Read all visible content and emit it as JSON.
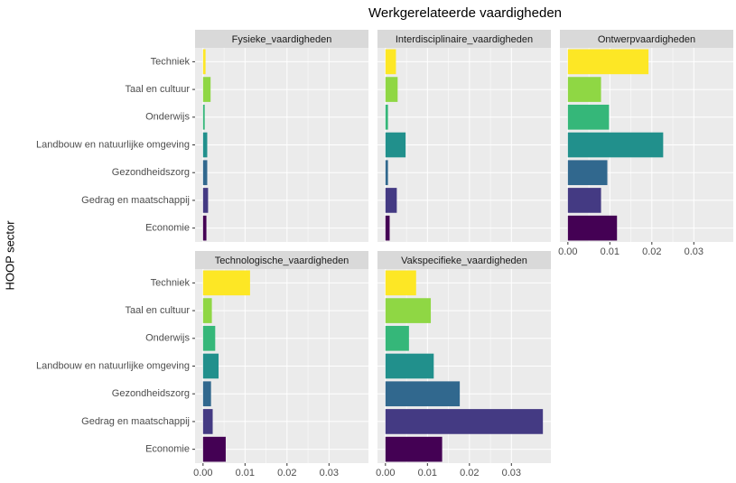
{
  "title": "Werkgerelateerde vaardigheden",
  "y_label": "HOOP sector",
  "chart_data": [
    {
      "type": "bar",
      "title": "Fysieke_vaardigheden",
      "categories": [
        "Techniek",
        "Taal en cultuur",
        "Onderwijs",
        "Landbouw en natuurlijke omgeving",
        "Gezondheidszorg",
        "Gedrag en maatschappij",
        "Economie"
      ],
      "values": [
        0.0006,
        0.0018,
        0.0004,
        0.001,
        0.001,
        0.0012,
        0.0008
      ],
      "colors": [
        "#FDE725",
        "#8FD744",
        "#35B779",
        "#21908C",
        "#31688E",
        "#443A83",
        "#440154"
      ],
      "xlim": [
        -0.0019,
        0.0394
      ],
      "xticks": [
        {
          "value": 0,
          "label": "0.00"
        },
        0.01,
        0.02,
        0.03
      ]
    },
    {
      "type": "bar",
      "title": "Interdisciplinaire_vaardigheden",
      "categories": [
        "Techniek",
        "Taal en cultuur",
        "Onderwijs",
        "Landbouw en natuurlijke omgeving",
        "Gezondheidszorg",
        "Gedrag en maatschappij",
        "Economie"
      ],
      "values": [
        0.0025,
        0.0029,
        0.0006,
        0.0048,
        0.0006,
        0.0027,
        0.001
      ],
      "colors": [
        "#FDE725",
        "#8FD744",
        "#35B779",
        "#21908C",
        "#31688E",
        "#443A83",
        "#440154"
      ],
      "xlim": [
        -0.0019,
        0.0394
      ],
      "xticks": [
        {
          "value": 0,
          "label": "0.00"
        },
        0.01,
        0.02,
        0.03
      ]
    },
    {
      "type": "bar",
      "title": "Ontwerpvaardigheden",
      "categories": [
        "Techniek",
        "Taal en cultuur",
        "Onderwijs",
        "Landbouw en natuurlijke omgeving",
        "Gezondheidszorg",
        "Gedrag en maatschappij",
        "Economie"
      ],
      "values": [
        0.0192,
        0.0079,
        0.0098,
        0.0227,
        0.0094,
        0.0079,
        0.0117
      ],
      "colors": [
        "#FDE725",
        "#8FD744",
        "#35B779",
        "#21908C",
        "#31688E",
        "#443A83",
        "#440154"
      ],
      "xlim": [
        -0.0019,
        0.0394
      ],
      "xticks": [
        {
          "value": 0,
          "label": "0.00"
        },
        0.01,
        0.02,
        0.03
      ]
    },
    {
      "type": "bar",
      "title": "Technologische_vaardigheden",
      "categories": [
        "Techniek",
        "Taal en cultuur",
        "Onderwijs",
        "Landbouw en natuurlijke omgeving",
        "Gezondheidszorg",
        "Gedrag en maatschappij",
        "Economie"
      ],
      "values": [
        0.0112,
        0.0021,
        0.0029,
        0.0037,
        0.0019,
        0.0023,
        0.0054
      ],
      "colors": [
        "#FDE725",
        "#8FD744",
        "#35B779",
        "#21908C",
        "#31688E",
        "#443A83",
        "#440154"
      ],
      "xlim": [
        -0.0019,
        0.0394
      ],
      "xticks": [
        {
          "value": 0,
          "label": "0.00"
        },
        0.01,
        0.02,
        0.03
      ]
    },
    {
      "type": "bar",
      "title": "Vakspecifieke_vaardigheden",
      "categories": [
        "Techniek",
        "Taal en cultuur",
        "Onderwijs",
        "Landbouw en natuurlijke omgeving",
        "Gezondheidszorg",
        "Gedrag en maatschappij",
        "Economie"
      ],
      "values": [
        0.0073,
        0.0108,
        0.0056,
        0.0115,
        0.0177,
        0.0375,
        0.0135
      ],
      "colors": [
        "#FDE725",
        "#8FD744",
        "#35B779",
        "#21908C",
        "#31688E",
        "#443A83",
        "#440154"
      ],
      "xlim": [
        -0.0019,
        0.0394
      ],
      "xticks": [
        {
          "value": 0,
          "label": "0.00"
        },
        0.01,
        0.02,
        0.03
      ]
    }
  ]
}
